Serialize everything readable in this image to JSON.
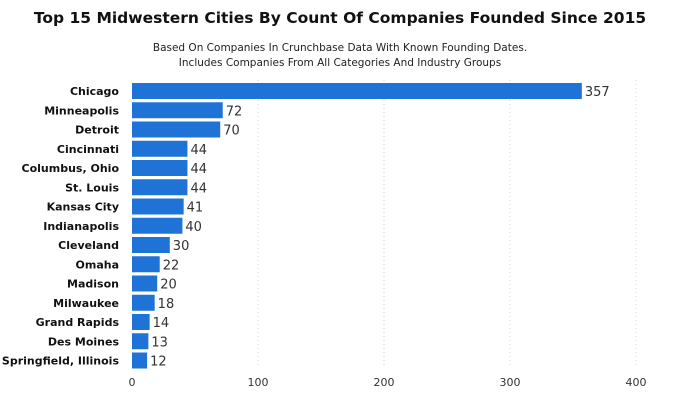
{
  "chart_data": {
    "type": "bar",
    "orientation": "horizontal",
    "title": "Top 15 Midwestern Cities By Count Of Companies Founded Since 2015",
    "subtitle": [
      "Based On Companies In Crunchbase Data With Known Founding Dates.",
      "Includes Companies From All Categories And Industry Groups"
    ],
    "categories": [
      "Chicago",
      "Minneapolis",
      "Detroit",
      "Cincinnati",
      "Columbus, Ohio",
      "St. Louis",
      "Kansas City",
      "Indianapolis",
      "Cleveland",
      "Omaha",
      "Madison",
      "Milwaukee",
      "Grand Rapids",
      "Des Moines",
      "Springfield, Illinois"
    ],
    "values": [
      357,
      72,
      70,
      44,
      44,
      44,
      41,
      40,
      30,
      22,
      20,
      18,
      14,
      13,
      12
    ],
    "xlim": [
      0,
      400
    ],
    "xticks": [
      0,
      100,
      200,
      300,
      400
    ],
    "grid": "vertical-dotted",
    "bar_color": "#1f73d6"
  }
}
